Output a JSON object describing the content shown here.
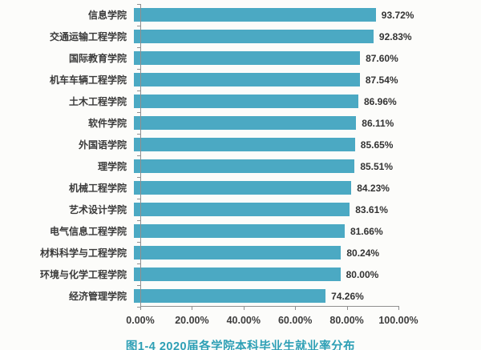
{
  "chart_data": {
    "type": "bar",
    "orientation": "horizontal",
    "title": "图1-4  2020届各学院本科毕业生就业率分布",
    "categories": [
      "信息学院",
      "交通运输工程学院",
      "国际教育学院",
      "机车车辆工程学院",
      "土木工程学院",
      "软件学院",
      "外国语学院",
      "理学院",
      "机械工程学院",
      "艺术设计学院",
      "电气信息工程学院",
      "材料科学与工程学院",
      "环境与化学工程学院",
      "经济管理学院"
    ],
    "values": [
      93.72,
      92.83,
      87.6,
      87.54,
      86.96,
      86.11,
      85.65,
      85.51,
      84.23,
      83.61,
      81.66,
      80.24,
      80.0,
      74.26
    ],
    "value_labels": [
      "93.72%",
      "92.83%",
      "87.60%",
      "87.54%",
      "86.96%",
      "86.11%",
      "85.65%",
      "85.51%",
      "84.23%",
      "83.61%",
      "81.66%",
      "80.24%",
      "80.00%",
      "74.26%"
    ],
    "x_tick_labels": [
      "0.00%",
      "20.00%",
      "40.00%",
      "60.00%",
      "80.00%",
      "100.00%"
    ],
    "x_tick_values": [
      0,
      20,
      40,
      60,
      80,
      100
    ],
    "xlim": [
      0,
      100
    ],
    "grid": false,
    "legend": "none",
    "xlabel": "",
    "ylabel": ""
  },
  "colors": {
    "bar": "#4ba9c3",
    "axis": "#8f8f8f",
    "category_text": "#3a3a3a",
    "value_text": "#333333",
    "caption_text": "#2d9fb5",
    "background": "#fcfcfa"
  }
}
